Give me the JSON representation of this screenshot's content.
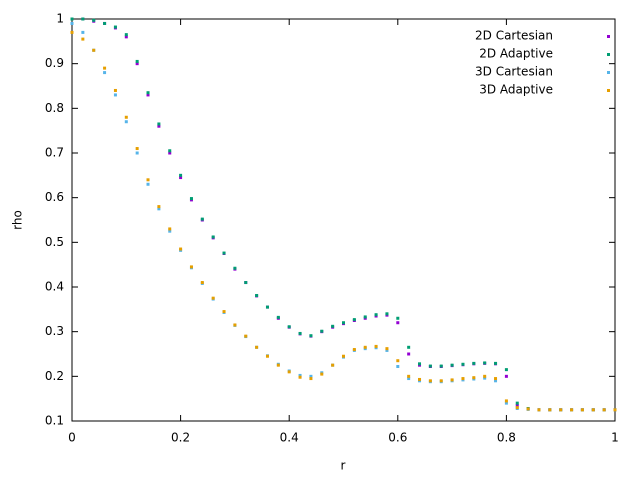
{
  "chart_data": {
    "type": "scatter",
    "xlabel": "r",
    "ylabel": "rho",
    "xlim": [
      0,
      1
    ],
    "ylim": [
      0.1,
      1
    ],
    "xticks": [
      0,
      0.2,
      0.4,
      0.6,
      0.8,
      1
    ],
    "yticks": [
      0.1,
      0.2,
      0.3,
      0.4,
      0.5,
      0.6,
      0.7,
      0.8,
      0.9,
      1
    ],
    "legend": "top right",
    "x": [
      0,
      0.02,
      0.04,
      0.06,
      0.08,
      0.1,
      0.12,
      0.14,
      0.16,
      0.18,
      0.2,
      0.22,
      0.24,
      0.26,
      0.28,
      0.3,
      0.32,
      0.34,
      0.36,
      0.38,
      0.4,
      0.42,
      0.44,
      0.46,
      0.48,
      0.5,
      0.52,
      0.54,
      0.56,
      0.58,
      0.6,
      0.62,
      0.64,
      0.66,
      0.68,
      0.7,
      0.72,
      0.74,
      0.76,
      0.78,
      0.8,
      0.82,
      0.84,
      0.86,
      0.88,
      0.9,
      0.92,
      0.94,
      0.96,
      0.98,
      1
    ],
    "series": [
      {
        "name": "2D Cartesian",
        "color": "#9400d3",
        "values": [
          1,
          1,
          0.995,
          0.99,
          0.98,
          0.96,
          0.9,
          0.83,
          0.76,
          0.7,
          0.645,
          0.595,
          0.55,
          0.51,
          0.475,
          0.44,
          0.41,
          0.38,
          0.355,
          0.33,
          0.31,
          0.295,
          0.29,
          0.3,
          0.31,
          0.318,
          0.325,
          0.33,
          0.335,
          0.337,
          0.32,
          0.25,
          0.225,
          0.222,
          0.222,
          0.224,
          0.226,
          0.228,
          0.229,
          0.228,
          0.2,
          0.135,
          0.127,
          0.125,
          0.125,
          0.125,
          0.125,
          0.125,
          0.125,
          0.125,
          0.125
        ]
      },
      {
        "name": "2D Adaptive",
        "color": "#009e73",
        "values": [
          1,
          1,
          0.997,
          0.99,
          0.982,
          0.965,
          0.905,
          0.835,
          0.765,
          0.705,
          0.65,
          0.598,
          0.552,
          0.512,
          0.476,
          0.442,
          0.41,
          0.381,
          0.355,
          0.332,
          0.311,
          0.296,
          0.291,
          0.301,
          0.312,
          0.32,
          0.327,
          0.333,
          0.338,
          0.34,
          0.33,
          0.265,
          0.228,
          0.223,
          0.223,
          0.225,
          0.227,
          0.229,
          0.23,
          0.229,
          0.215,
          0.14,
          0.128,
          0.125,
          0.125,
          0.125,
          0.125,
          0.125,
          0.125,
          0.125,
          0.125
        ]
      },
      {
        "name": "3D Cartesian",
        "color": "#56b4e9",
        "values": [
          0.99,
          0.97,
          0.93,
          0.88,
          0.83,
          0.77,
          0.7,
          0.63,
          0.575,
          0.525,
          0.482,
          0.443,
          0.408,
          0.373,
          0.343,
          0.314,
          0.289,
          0.265,
          0.246,
          0.227,
          0.212,
          0.202,
          0.2,
          0.208,
          0.225,
          0.243,
          0.258,
          0.262,
          0.264,
          0.258,
          0.222,
          0.195,
          0.19,
          0.188,
          0.188,
          0.19,
          0.192,
          0.194,
          0.196,
          0.19,
          0.14,
          0.128,
          0.126,
          0.125,
          0.125,
          0.125,
          0.125,
          0.125,
          0.125,
          0.125,
          0.125
        ]
      },
      {
        "name": "3D Adaptive",
        "color": "#e69f00",
        "values": [
          0.97,
          0.955,
          0.93,
          0.89,
          0.84,
          0.78,
          0.71,
          0.64,
          0.58,
          0.53,
          0.485,
          0.445,
          0.41,
          0.375,
          0.345,
          0.315,
          0.29,
          0.265,
          0.245,
          0.225,
          0.21,
          0.198,
          0.195,
          0.205,
          0.225,
          0.245,
          0.26,
          0.265,
          0.267,
          0.262,
          0.235,
          0.2,
          0.193,
          0.19,
          0.19,
          0.192,
          0.195,
          0.197,
          0.2,
          0.195,
          0.145,
          0.13,
          0.127,
          0.125,
          0.125,
          0.125,
          0.125,
          0.125,
          0.125,
          0.125,
          0.125
        ]
      }
    ]
  }
}
